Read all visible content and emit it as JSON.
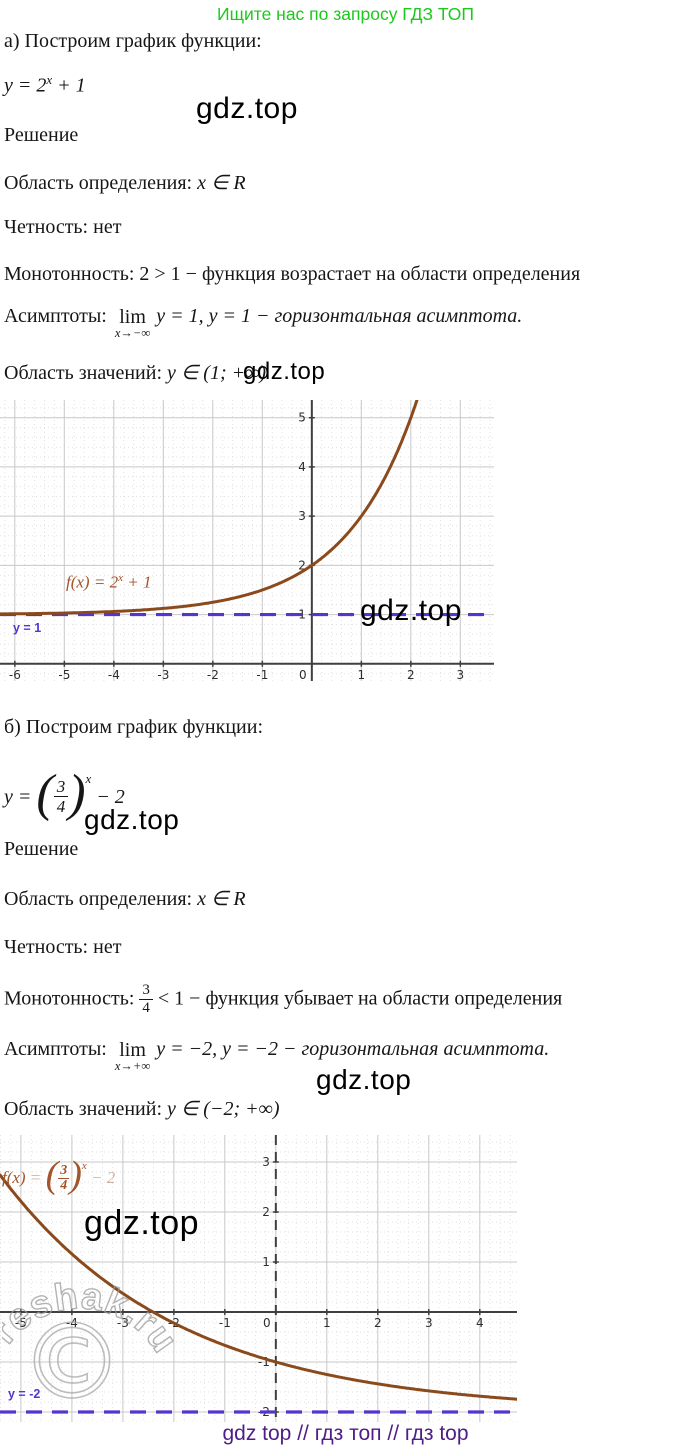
{
  "header": {
    "promo": "Ищите нас по запросу ГДЗ ТОП"
  },
  "watermark": {
    "text": "gdz.top"
  },
  "footer": {
    "text": "gdz top  //  гдз топ  //  гдз top"
  },
  "reshak": {
    "text": "reshak.ru",
    "copyright": "©"
  },
  "part_a": {
    "title": "а) Построим график функции:",
    "formula_pre": "y = 2",
    "formula_sup": "x",
    "formula_post": " + 1",
    "solution": "Решение",
    "domain_label": "Область определения: ",
    "domain_math": "x ∈ R",
    "parity": "Четность: нет",
    "monotonic": "Монотонность: 2 > 1 − функция возрастает на области определения",
    "asymptote_label": "Асимптоты:",
    "lim_word": "lim",
    "lim_sub": "x→−∞",
    "asymptote_rest": "y = 1, y = 1 − горизонтальная асимптота.",
    "range_label": "Область значений: ",
    "range_math": "y ∈ (1; +∞)"
  },
  "part_b": {
    "title": "б) Построим график функции:",
    "formula_pre": "y = ",
    "frac_num": "3",
    "frac_den": "4",
    "formula_sup": "x",
    "formula_post": " − 2",
    "solution": "Решение",
    "domain_label": "Область определения: ",
    "domain_math": "x ∈ R",
    "parity": "Четность: нет",
    "monotonic_pre": "Монотонность: ",
    "monotonic_frac_num": "3",
    "monotonic_frac_den": "4",
    "monotonic_rest": " < 1 − функция убывает на области определения",
    "asymptote_label": "Асимптоты:",
    "lim_word": "lim",
    "lim_sub": "x→+∞",
    "asymptote_rest": "y = −2, y = −2 − горизонтальная асимптота.",
    "range_label": "Область значений: ",
    "range_math": "y ∈ (−2; +∞)"
  },
  "chart_data": [
    {
      "type": "line",
      "function": "f(x) = 2^x + 1",
      "curve": {
        "base": 2,
        "shift": 1
      },
      "asymptote": {
        "y": 1,
        "label": "y = 1"
      },
      "xlim": [
        -6.3,
        3.68
      ],
      "ylim": [
        -0.35,
        5.36
      ],
      "x_ticks": [
        -6,
        -5,
        -4,
        -3,
        -2,
        -1,
        0,
        1,
        2,
        3
      ],
      "y_ticks": [
        1,
        2,
        3,
        4,
        5
      ],
      "grid": true,
      "y_axis_dashed": false,
      "colors": {
        "curve": "#8a4a1c",
        "asymptote": "#5634cf",
        "axis": "#3f3f3f",
        "grid_major": "#c9c9c9",
        "grid_minor": "#e2e2e2",
        "tick_label": "#2e2e2e"
      },
      "flabel": {
        "pre": "f(x)",
        "eq": " = 2",
        "sup": "x",
        "post": " + 1"
      },
      "key_points": [
        {
          "x": 0,
          "y": 2
        }
      ]
    },
    {
      "type": "line",
      "function": "f(x) = (3/4)^x − 2",
      "curve": {
        "base": 0.75,
        "shift": -2
      },
      "asymptote": {
        "y": -2,
        "label": "y = -2"
      },
      "xlim": [
        -5.41,
        4.73
      ],
      "ylim": [
        -2.2,
        3.54
      ],
      "x_ticks": [
        -5,
        -4,
        -3,
        -2,
        -1,
        0,
        1,
        2,
        3,
        4
      ],
      "y_ticks": [
        3,
        2,
        1,
        -1,
        -2
      ],
      "grid": true,
      "y_axis_dashed": true,
      "colors": {
        "curve": "#8a4a1c",
        "asymptote": "#5634cf",
        "axis": "#3f3f3f",
        "grid_major": "#c9c9c9",
        "grid_minor": "#e2e2e2",
        "tick_label": "#2e2e2e"
      },
      "flabel": {
        "pre": "f(x)",
        "eq": " = ",
        "frac_num": "3",
        "frac_den": "4",
        "sup": "x",
        "post": " − 2"
      },
      "key_points": [
        {
          "x": 0,
          "y": -1
        }
      ]
    }
  ]
}
